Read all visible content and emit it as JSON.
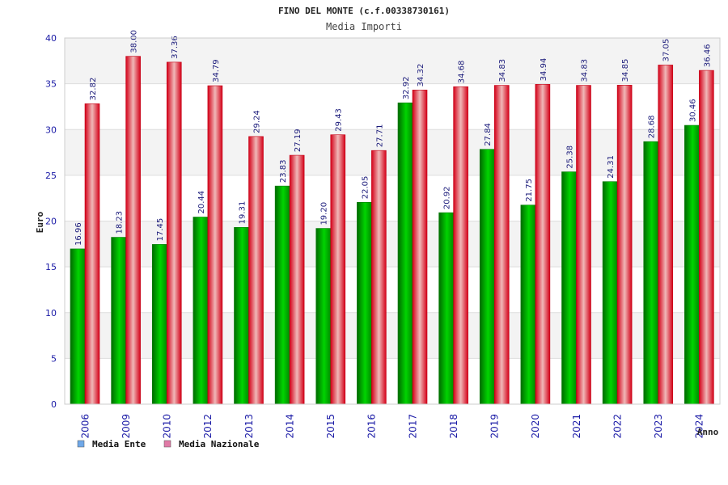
{
  "chart_data": {
    "type": "bar",
    "title": "FINO DEL MONTE (c.f.00338730161)",
    "subtitle": "Media Importi",
    "xlabel": "Anno",
    "ylabel": "Euro",
    "ylim": [
      0,
      40
    ],
    "yticks": [
      "0",
      "5",
      "10",
      "15",
      "20",
      "25",
      "30",
      "35",
      "40"
    ],
    "categories": [
      "2006",
      "2009",
      "2010",
      "2012",
      "2013",
      "2014",
      "2015",
      "2016",
      "2017",
      "2018",
      "2019",
      "2020",
      "2021",
      "2022",
      "2023",
      "2024"
    ],
    "series": [
      {
        "name": "Media Ente",
        "values": [
          16.96,
          18.23,
          17.45,
          20.44,
          19.31,
          23.83,
          19.2,
          22.05,
          32.92,
          20.92,
          27.84,
          21.75,
          25.38,
          24.31,
          28.68,
          30.46
        ],
        "labels": [
          "16.96",
          "18.23",
          "17.45",
          "20.44",
          "19.31",
          "23.83",
          "19.20",
          "22.05",
          "32.92",
          "20.92",
          "27.84",
          "21.75",
          "25.38",
          "24.31",
          "28.68",
          "30.46"
        ],
        "bar_color": "#00b400",
        "legend_color": "#6fa8e8"
      },
      {
        "name": "Media Nazionale",
        "values": [
          32.82,
          38.0,
          37.36,
          34.79,
          29.24,
          27.19,
          29.43,
          27.71,
          34.32,
          34.68,
          34.83,
          34.94,
          34.83,
          34.85,
          37.05,
          36.46
        ],
        "labels": [
          "32.82",
          "38.00",
          "37.36",
          "34.79",
          "29.24",
          "27.19",
          "29.43",
          "27.71",
          "34.32",
          "34.68",
          "34.83",
          "34.94",
          "34.83",
          "34.85",
          "37.05",
          "36.46"
        ],
        "bar_color": "#e8001c",
        "legend_color": "#e07aa6"
      }
    ],
    "grid": true,
    "legend_position": "bottom-left",
    "colors": {
      "axis_text": "#1a1aa6",
      "title_text": "#222222",
      "band": "#f3f3f3",
      "grid": "#dddddd"
    }
  }
}
